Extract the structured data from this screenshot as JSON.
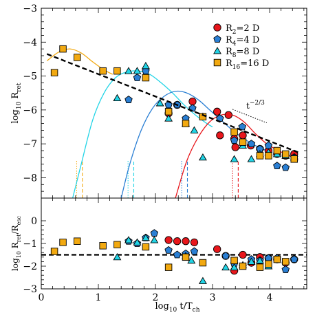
{
  "chart_data": [
    {
      "type": "scatter",
      "xlabel_main": "log",
      "xlabel_sub1": "10",
      "xlabel_rest": " t/T",
      "xlabel_sub2": "ch",
      "ylabel_main": "log",
      "ylabel_sub1": "10",
      "ylabel_rest": " R",
      "ylabel_sub2": "ret",
      "xlim": [
        0,
        4.65
      ],
      "ylim": [
        -8.6,
        -3
      ],
      "xticks": [
        0,
        1,
        2,
        3,
        4
      ],
      "xtick_labels": [
        "0",
        "1",
        "2",
        "3",
        "4"
      ],
      "yticks": [
        -3,
        -4,
        -5,
        -6,
        -7,
        -8
      ],
      "ytick_labels": [
        "−3",
        "−4",
        "−5",
        "−6",
        "−7",
        "−8"
      ],
      "annotation": {
        "base": "t",
        "exp": "−2/3"
      },
      "legend_position": "top-right",
      "series": [
        {
          "name": "R",
          "sub": "2",
          "value": "=2 D",
          "color": "#e8161b",
          "marker": "circle",
          "x": [
            2.23,
            2.38,
            2.65,
            3.08,
            3.13,
            3.28,
            3.38,
            3.4,
            3.53,
            3.67,
            3.83,
            3.98,
            4.13,
            4.28,
            4.43
          ],
          "y": [
            -6.1,
            -5.85,
            -5.75,
            -6.05,
            -6.75,
            -6.15,
            -6.85,
            -7.1,
            -6.75,
            -7.05,
            -7.15,
            -7.2,
            -7.3,
            -7.35,
            -7.3
          ]
        },
        {
          "name": "R",
          "sub": "4",
          "value": "=4 D",
          "color": "#2a7fd4",
          "marker": "pentagon",
          "x": [
            1.53,
            1.68,
            1.83,
            2.23,
            2.38,
            2.53,
            2.65,
            2.83,
            3.13,
            3.38,
            3.52,
            3.68,
            3.83,
            3.98,
            4.13,
            4.28,
            4.43
          ],
          "y": [
            -5.7,
            -5.05,
            -4.85,
            -5.85,
            -5.85,
            -6.25,
            -5.95,
            -6.2,
            -6.25,
            -6.9,
            -6.5,
            -7.0,
            -7.15,
            -7.05,
            -7.65,
            -7.7,
            -7.4
          ]
        },
        {
          "name": "R",
          "sub": "8",
          "value": "=8 D",
          "color": "#22d4e6",
          "marker": "triangle",
          "x": [
            1.33,
            1.53,
            1.68,
            1.83,
            2.08,
            2.23,
            2.53,
            2.68,
            2.83,
            3.38,
            3.53,
            3.68,
            3.83,
            3.98,
            4.13,
            4.28,
            4.43
          ],
          "y": [
            -5.65,
            -4.85,
            -4.85,
            -4.7,
            -5.8,
            -6.25,
            -6.4,
            -6.6,
            -7.4,
            -7.45,
            -7.05,
            -7.45,
            -7.3,
            -7.25,
            -7.3,
            -7.35,
            -7.4
          ]
        },
        {
          "name": "R",
          "sub": "16",
          "value": "=16 D",
          "color": "#f2a910",
          "marker": "square",
          "x": [
            0.23,
            0.38,
            0.63,
            1.08,
            1.33,
            1.83,
            2.23,
            2.53,
            2.83,
            3.38,
            3.53,
            3.83,
            3.98,
            4.13,
            4.28,
            4.43
          ],
          "y": [
            -4.9,
            -4.2,
            -4.45,
            -4.85,
            -4.85,
            -5.05,
            -6.05,
            -6.4,
            -6.2,
            -6.65,
            -6.95,
            -7.35,
            -7.35,
            -7.2,
            -7.3,
            -7.45
          ]
        }
      ],
      "fit_curves": [
        {
          "color": "#f2a910",
          "x": [
            0.1,
            0.3,
            0.5,
            0.7,
            0.9,
            1.1,
            1.25
          ],
          "y": [
            -4.55,
            -4.3,
            -4.2,
            -4.32,
            -4.58,
            -4.82,
            -4.95
          ]
        },
        {
          "color": "#22d4e6",
          "x": [
            0.55,
            0.7,
            0.9,
            1.1,
            1.3,
            1.5,
            1.7,
            1.9,
            2.1,
            2.3,
            2.5,
            2.7,
            2.9,
            3.0
          ],
          "y": [
            -8.6,
            -7.6,
            -6.3,
            -5.5,
            -5.05,
            -4.88,
            -4.85,
            -4.95,
            -5.2,
            -5.5,
            -5.85,
            -6.15,
            -6.4,
            -6.5
          ]
        },
        {
          "color": "#2a7fd4",
          "x": [
            1.4,
            1.55,
            1.75,
            1.95,
            2.15,
            2.35,
            2.55,
            2.75,
            2.95,
            3.15,
            3.35,
            3.55,
            3.75,
            3.95,
            4.05
          ],
          "y": [
            -8.6,
            -7.6,
            -6.6,
            -5.95,
            -5.6,
            -5.45,
            -5.5,
            -5.7,
            -6.0,
            -6.3,
            -6.6,
            -6.85,
            -7.05,
            -7.2,
            -7.25
          ]
        },
        {
          "color": "#e8161b",
          "x": [
            2.35,
            2.55,
            2.75,
            2.95,
            3.15,
            3.35,
            3.55,
            3.75,
            3.95,
            4.15,
            4.35,
            4.5
          ],
          "y": [
            -8.6,
            -7.5,
            -6.8,
            -6.35,
            -6.15,
            -6.15,
            -6.35,
            -6.7,
            -7.0,
            -7.2,
            -7.35,
            -7.45
          ]
        }
      ],
      "trend_line": {
        "x": [
          0.1,
          4.5
        ],
        "y": [
          -4.35,
          -7.25
        ],
        "style": "dashed"
      },
      "reference_line": {
        "x": [
          3.35,
          3.95
        ],
        "y": [
          -5.98,
          -6.38
        ],
        "style": "dotted"
      },
      "marker_lines": [
        {
          "color": "#f2a910",
          "x": 0.62,
          "style": "dotted"
        },
        {
          "color": "#f2a910",
          "x": 0.72,
          "style": "dashed"
        },
        {
          "color": "#22d4e6",
          "x": 1.52,
          "style": "dotted"
        },
        {
          "color": "#22d4e6",
          "x": 1.62,
          "style": "dashed"
        },
        {
          "color": "#2a7fd4",
          "x": 2.46,
          "style": "dotted"
        },
        {
          "color": "#2a7fd4",
          "x": 2.56,
          "style": "dashed"
        },
        {
          "color": "#e8161b",
          "x": 3.35,
          "style": "dotted"
        },
        {
          "color": "#e8161b",
          "x": 3.45,
          "style": "dashed"
        }
      ]
    },
    {
      "type": "scatter",
      "ylabel_main": "log",
      "ylabel_sub1": "10",
      "ylabel_rest": " R",
      "ylabel_sub2": "ret",
      "ylabel_slash": "/R",
      "ylabel_sub3": "esc",
      "xlim": [
        0,
        4.65
      ],
      "ylim": [
        -3,
        1
      ],
      "yticks": [
        0,
        -1,
        -2,
        -3
      ],
      "ytick_labels": [
        "0",
        "−1",
        "−2",
        "−3"
      ],
      "reference_line": {
        "y": -1.5,
        "style": "dashed"
      },
      "series": [
        {
          "name": "R=2 D",
          "color": "#e8161b",
          "marker": "circle",
          "x": [
            2.23,
            2.38,
            2.53,
            2.68,
            3.08,
            3.23,
            3.38,
            3.53,
            3.68,
            3.83,
            3.98,
            4.13,
            4.28,
            4.43
          ],
          "y": [
            -0.85,
            -0.9,
            -0.9,
            -0.95,
            -1.25,
            -1.55,
            -2.2,
            -1.5,
            -1.85,
            -1.6,
            -1.65,
            -1.7,
            -1.85,
            -1.7
          ]
        },
        {
          "name": "R=4 D",
          "color": "#2a7fd4",
          "marker": "pentagon",
          "x": [
            1.53,
            1.68,
            1.83,
            1.98,
            2.23,
            2.38,
            2.53,
            2.68,
            3.23,
            3.38,
            3.53,
            3.68,
            3.83,
            3.98,
            4.13,
            4.28,
            4.43
          ],
          "y": [
            -0.9,
            -1.0,
            -0.75,
            -0.55,
            -1.3,
            -1.5,
            -1.45,
            -1.35,
            -1.55,
            -1.9,
            -2.0,
            -1.7,
            -1.75,
            -1.65,
            -1.65,
            -2.15,
            -1.7
          ]
        },
        {
          "name": "R=8 D",
          "color": "#22d4e6",
          "marker": "triangle",
          "x": [
            1.33,
            1.53,
            1.68,
            1.83,
            1.98,
            2.53,
            2.63,
            2.83,
            3.23,
            3.38,
            3.53,
            3.68,
            3.83,
            3.98
          ],
          "y": [
            -1.6,
            -0.85,
            -0.95,
            -0.75,
            -0.85,
            -1.55,
            -1.75,
            -2.65,
            -2.05,
            -2.05,
            -1.95,
            -1.8,
            -1.75,
            -2.0
          ]
        },
        {
          "name": "R=16 D",
          "color": "#f2a910",
          "marker": "square",
          "x": [
            0.23,
            0.38,
            0.63,
            1.08,
            1.33,
            1.83,
            2.23,
            2.53,
            2.83,
            3.38,
            3.53,
            3.83,
            3.98,
            4.13,
            4.28
          ],
          "y": [
            -1.35,
            -0.95,
            -0.9,
            -1.1,
            -1.05,
            -1.15,
            -2.05,
            -1.6,
            -1.85,
            -1.75,
            -2.0,
            -2.05,
            -1.9,
            -1.7,
            -1.8
          ]
        }
      ]
    }
  ]
}
